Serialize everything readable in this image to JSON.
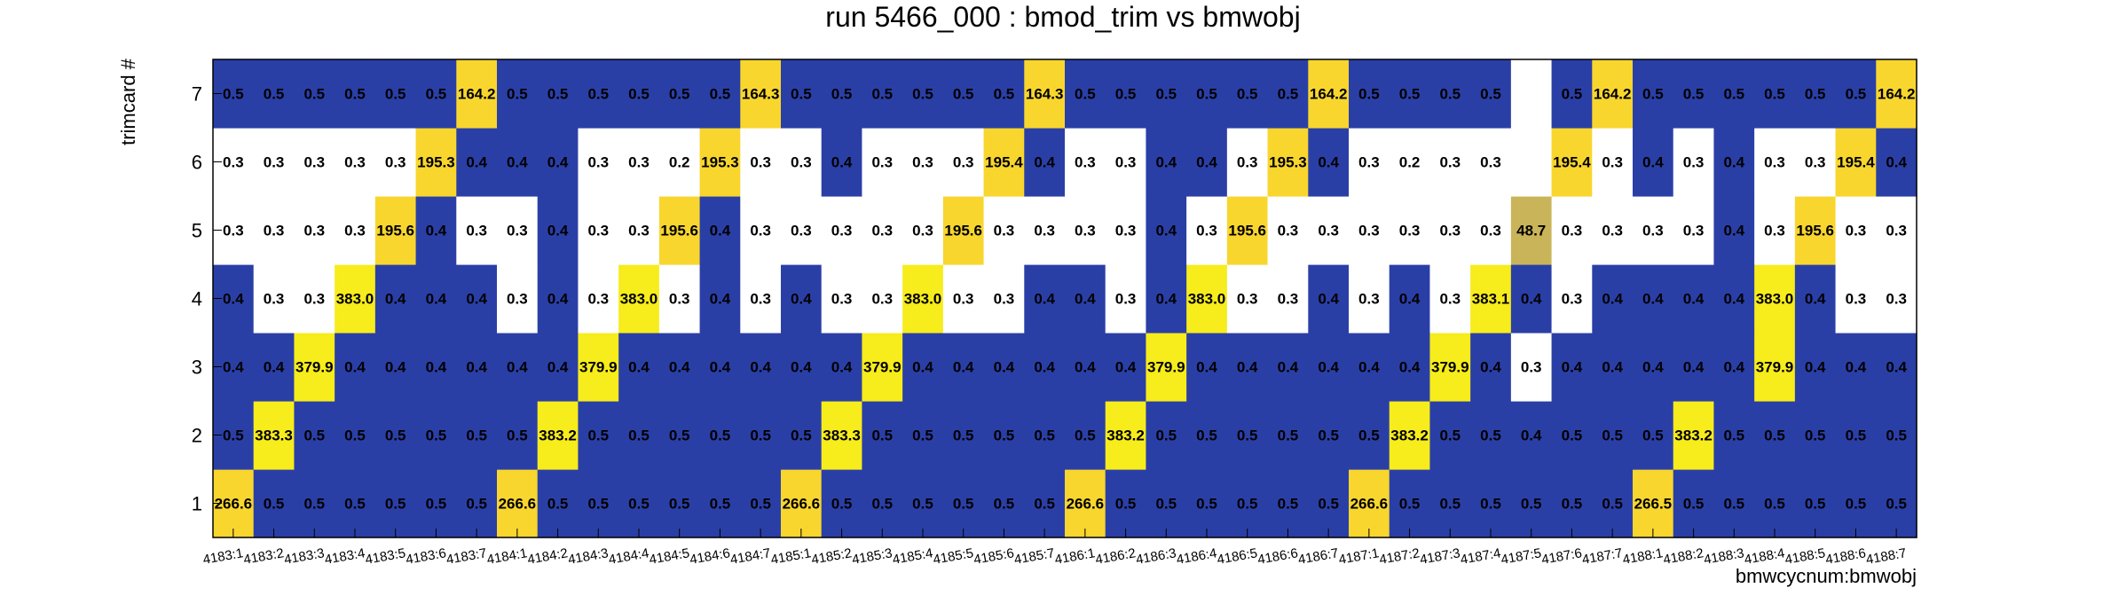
{
  "chart_data": {
    "type": "heatmap",
    "title": "run 5466_000 : bmod_trim vs bmwobj",
    "xlabel": "bmwcycnum:bmwobj",
    "ylabel": "trimcard #",
    "x_categories": [
      "4183:1",
      "4183:2",
      "4183:3",
      "4183:4",
      "4183:5",
      "4183:6",
      "4183:7",
      "4184:1",
      "4184:2",
      "4184:3",
      "4184:4",
      "4184:5",
      "4184:6",
      "4184:7",
      "4185:1",
      "4185:2",
      "4185:3",
      "4185:4",
      "4185:5",
      "4185:6",
      "4185:7",
      "4186:1",
      "4186:2",
      "4186:3",
      "4186:4",
      "4186:5",
      "4186:6",
      "4186:7",
      "4187:1",
      "4187:2",
      "4187:3",
      "4187:4",
      "4187:5",
      "4187:6",
      "4187:7",
      "4188:1",
      "4188:2",
      "4188:3",
      "4188:4",
      "4188:5",
      "4188:6",
      "4188:7"
    ],
    "y_categories": [
      "1",
      "2",
      "3",
      "4",
      "5",
      "6",
      "7"
    ],
    "values": {
      "7": [
        "0.5",
        "0.5",
        "0.5",
        "0.5",
        "0.5",
        "0.5",
        "164.2",
        "0.5",
        "0.5",
        "0.5",
        "0.5",
        "0.5",
        "0.5",
        "164.3",
        "0.5",
        "0.5",
        "0.5",
        "0.5",
        "0.5",
        "0.5",
        "164.3",
        "0.5",
        "0.5",
        "0.5",
        "0.5",
        "0.5",
        "0.5",
        "164.2",
        "0.5",
        "0.5",
        "0.5",
        "0.5",
        "",
        "0.5",
        "164.2",
        "0.5",
        "0.5",
        "0.5",
        "0.5",
        "0.5",
        "0.5",
        "164.2"
      ],
      "6": [
        "0.3",
        "0.3",
        "0.3",
        "0.3",
        "0.3",
        "195.3",
        "0.4",
        "0.4",
        "0.4",
        "0.3",
        "0.3",
        "0.2",
        "195.3",
        "0.3",
        "0.3",
        "0.4",
        "0.3",
        "0.3",
        "0.3",
        "195.4",
        "0.4",
        "0.3",
        "0.3",
        "0.4",
        "0.4",
        "0.3",
        "195.3",
        "0.4",
        "0.3",
        "0.2",
        "0.3",
        "0.3",
        "",
        "195.4",
        "0.3",
        "0.4",
        "0.3",
        "0.4",
        "0.3",
        "0.3",
        "195.4",
        "0.4"
      ],
      "5": [
        "0.3",
        "0.3",
        "0.3",
        "0.3",
        "195.6",
        "0.4",
        "0.3",
        "0.3",
        "0.4",
        "0.3",
        "0.3",
        "195.6",
        "0.4",
        "0.3",
        "0.3",
        "0.3",
        "0.3",
        "0.3",
        "195.6",
        "0.3",
        "0.3",
        "0.3",
        "0.3",
        "0.4",
        "0.3",
        "195.6",
        "0.3",
        "0.3",
        "0.3",
        "0.3",
        "0.3",
        "0.3",
        "48.7",
        "0.3",
        "0.3",
        "0.3",
        "0.3",
        "0.4",
        "0.3",
        "195.6",
        "0.3",
        "0.3"
      ],
      "4": [
        "0.4",
        "0.3",
        "0.3",
        "383.0",
        "0.4",
        "0.4",
        "0.4",
        "0.3",
        "0.4",
        "0.3",
        "383.0",
        "0.3",
        "0.4",
        "0.3",
        "0.4",
        "0.3",
        "0.3",
        "383.0",
        "0.3",
        "0.3",
        "0.4",
        "0.4",
        "0.3",
        "0.4",
        "383.0",
        "0.3",
        "0.3",
        "0.4",
        "0.3",
        "0.4",
        "0.3",
        "383.1",
        "0.4",
        "0.3",
        "0.4",
        "0.4",
        "0.4",
        "0.4",
        "383.0",
        "0.4",
        "0.3",
        "0.3"
      ],
      "3": [
        "0.4",
        "0.4",
        "379.9",
        "0.4",
        "0.4",
        "0.4",
        "0.4",
        "0.4",
        "0.4",
        "379.9",
        "0.4",
        "0.4",
        "0.4",
        "0.4",
        "0.4",
        "0.4",
        "379.9",
        "0.4",
        "0.4",
        "0.4",
        "0.4",
        "0.4",
        "0.4",
        "379.9",
        "0.4",
        "0.4",
        "0.4",
        "0.4",
        "0.4",
        "0.4",
        "379.9",
        "0.4",
        "0.3",
        "0.4",
        "0.4",
        "0.4",
        "0.4",
        "0.4",
        "379.9",
        "0.4",
        "0.4",
        "0.4"
      ],
      "2": [
        "0.5",
        "383.3",
        "0.5",
        "0.5",
        "0.5",
        "0.5",
        "0.5",
        "0.5",
        "383.2",
        "0.5",
        "0.5",
        "0.5",
        "0.5",
        "0.5",
        "0.5",
        "383.3",
        "0.5",
        "0.5",
        "0.5",
        "0.5",
        "0.5",
        "0.5",
        "383.2",
        "0.5",
        "0.5",
        "0.5",
        "0.5",
        "0.5",
        "0.5",
        "383.2",
        "0.5",
        "0.5",
        "0.4",
        "0.5",
        "0.5",
        "0.5",
        "383.2",
        "0.5",
        "0.5",
        "0.5",
        "0.5",
        "0.5"
      ],
      "1": [
        "266.6",
        "0.5",
        "0.5",
        "0.5",
        "0.5",
        "0.5",
        "0.5",
        "266.6",
        "0.5",
        "0.5",
        "0.5",
        "0.5",
        "0.5",
        "0.5",
        "266.6",
        "0.5",
        "0.5",
        "0.5",
        "0.5",
        "0.5",
        "0.5",
        "266.6",
        "0.5",
        "0.5",
        "0.5",
        "0.5",
        "0.5",
        "0.5",
        "266.6",
        "0.5",
        "0.5",
        "0.5",
        "0.5",
        "0.5",
        "0.5",
        "266.5",
        "0.5",
        "0.5",
        "0.5",
        "0.5",
        "0.5",
        "0.5"
      ]
    },
    "colors": {
      "low_blue": "#2a3fa6",
      "high_yellow": "#f7ec1c",
      "peak_gold": "#f8d62e",
      "mid_tan": "#c9b45a",
      "empty": "#ffffff"
    }
  }
}
